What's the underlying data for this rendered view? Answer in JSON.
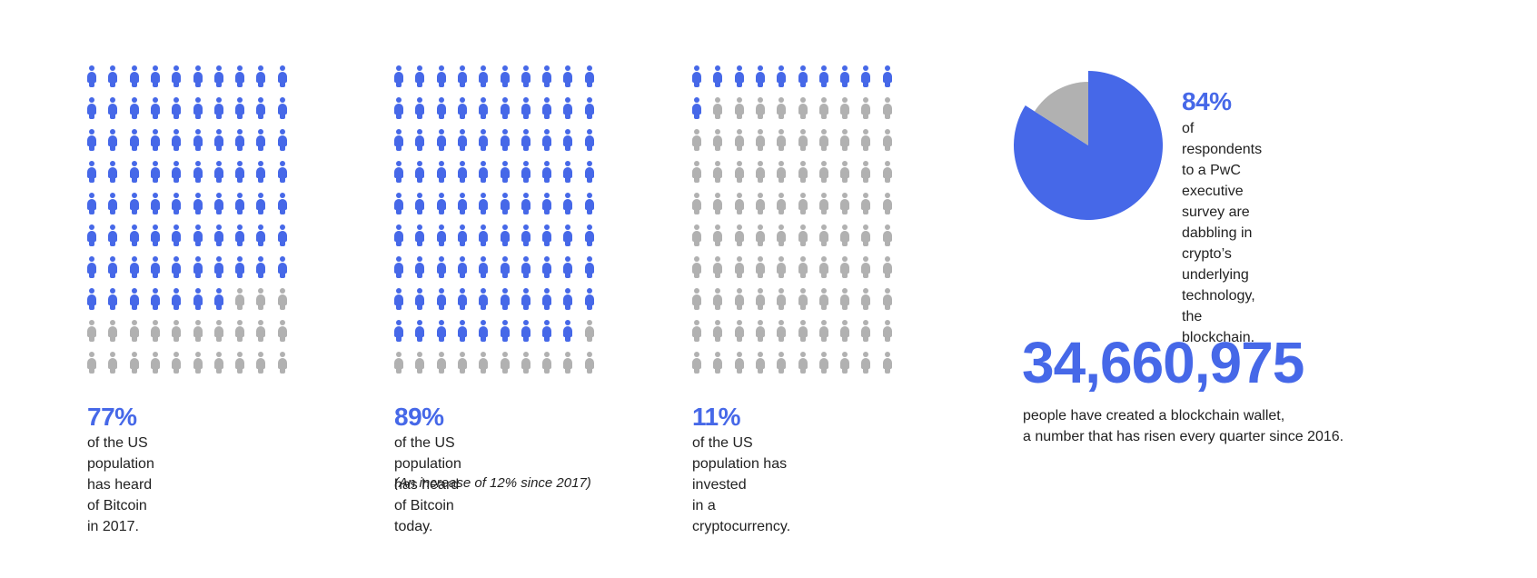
{
  "colors": {
    "accent": "#4668e8",
    "inactive": "#b1b1b1",
    "text": "#222222"
  },
  "chart_data": [
    {
      "type": "pictogram",
      "icon": "person-icon",
      "total": 100,
      "highlighted": 77,
      "value_label": "77%",
      "caption": [
        "of the US population has heard",
        "of Bitcoin in 2017."
      ]
    },
    {
      "type": "pictogram",
      "icon": "person-icon",
      "total": 100,
      "highlighted": 89,
      "value_label": "89%",
      "caption": [
        "of the US population has heard",
        "of Bitcoin today."
      ],
      "note": "(An increase of 12% since 2017)"
    },
    {
      "type": "pictogram",
      "icon": "person-icon",
      "total": 100,
      "highlighted": 11,
      "value_label": "11%",
      "caption": [
        "of the US population has invested",
        "in a cryptocurrency."
      ]
    },
    {
      "type": "pie",
      "slices": [
        {
          "value": 84,
          "color": "#4668e8"
        },
        {
          "value": 16,
          "color": "#b1b1b1"
        }
      ],
      "value_label": "84%",
      "caption": [
        "of respondents to a PwC",
        "executive survey are",
        "dabbling in crypto’s",
        "underlying technology,",
        "the blockchain."
      ]
    }
  ],
  "wallet_stat": {
    "number": "34,660,975",
    "caption": [
      "people have created a blockchain wallet,",
      "a number that has risen every quarter since 2016."
    ]
  }
}
